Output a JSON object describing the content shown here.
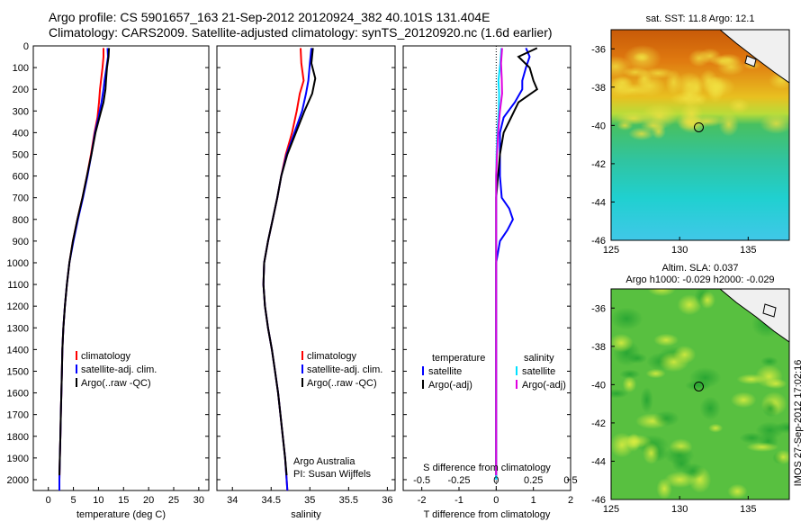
{
  "title_line1": "Argo profile: CS 5901657_163 21-Sep-2012 20120924_382 40.101S 131.404E",
  "title_line2": "Climatology: CARS2009. Satellite-adjusted climatology: synTS_20120920.nc (1.6d earlier)",
  "colors": {
    "red": "#ff0000",
    "blue": "#0000ff",
    "black": "#000000",
    "cyan": "#00e0ff",
    "magenta": "#e000e0"
  },
  "chart_data": [
    {
      "type": "line",
      "name": "temperature",
      "xlabel": "temperature (deg C)",
      "ylabel": "",
      "xlim": [
        -3,
        32
      ],
      "ylim": [
        2050,
        0
      ],
      "xticks": [
        "0",
        "5",
        "10",
        "15",
        "20",
        "25",
        "30"
      ],
      "yticks": [
        "0",
        "100",
        "200",
        "300",
        "400",
        "500",
        "600",
        "700",
        "800",
        "900",
        "1000",
        "1100",
        "1200",
        "1300",
        "1400",
        "1500",
        "1600",
        "1700",
        "1800",
        "1900",
        "2000"
      ],
      "legend": [
        "climatology",
        "satellite-adj. clim.",
        "Argo(..raw -QC)"
      ],
      "series": [
        {
          "name": "climatology",
          "color": "red",
          "points": [
            [
              11.0,
              10
            ],
            [
              11.0,
              50
            ],
            [
              10.8,
              100
            ],
            [
              10.5,
              160
            ],
            [
              10.3,
              200
            ],
            [
              10.1,
              260
            ],
            [
              9.8,
              330
            ],
            [
              9.2,
              400
            ],
            [
              8.5,
              500
            ],
            [
              7.7,
              600
            ],
            [
              6.8,
              700
            ],
            [
              5.8,
              800
            ],
            [
              4.9,
              900
            ],
            [
              4.2,
              1000
            ],
            [
              3.7,
              1100
            ],
            [
              3.3,
              1200
            ],
            [
              3.0,
              1300
            ],
            [
              2.8,
              1400
            ],
            [
              2.7,
              1500
            ],
            [
              2.6,
              1600
            ],
            [
              2.5,
              1700
            ],
            [
              2.4,
              1800
            ],
            [
              2.3,
              1900
            ],
            [
              2.2,
              2000
            ],
            [
              2.2,
              2050
            ]
          ]
        },
        {
          "name": "satellite-adj. clim.",
          "color": "blue",
          "points": [
            [
              11.8,
              10
            ],
            [
              11.9,
              50
            ],
            [
              11.6,
              100
            ],
            [
              11.2,
              160
            ],
            [
              11.0,
              200
            ],
            [
              10.6,
              260
            ],
            [
              10.0,
              330
            ],
            [
              9.3,
              400
            ],
            [
              8.6,
              500
            ],
            [
              7.8,
              600
            ],
            [
              6.9,
              700
            ],
            [
              5.9,
              800
            ],
            [
              5.0,
              900
            ],
            [
              4.2,
              1000
            ],
            [
              3.7,
              1100
            ],
            [
              3.3,
              1200
            ],
            [
              3.0,
              1300
            ],
            [
              2.8,
              1400
            ],
            [
              2.7,
              1500
            ],
            [
              2.6,
              1600
            ],
            [
              2.5,
              1700
            ],
            [
              2.4,
              1800
            ],
            [
              2.3,
              1900
            ],
            [
              2.2,
              2000
            ],
            [
              2.2,
              2050
            ]
          ]
        },
        {
          "name": "Argo(..raw -QC)",
          "color": "black",
          "points": [
            [
              12.1,
              10
            ],
            [
              12.0,
              50
            ],
            [
              11.7,
              100
            ],
            [
              11.5,
              160
            ],
            [
              11.4,
              200
            ],
            [
              11.0,
              260
            ],
            [
              10.2,
              330
            ],
            [
              9.4,
              400
            ],
            [
              8.6,
              500
            ],
            [
              7.7,
              600
            ],
            [
              6.8,
              700
            ],
            [
              5.8,
              800
            ],
            [
              4.9,
              900
            ],
            [
              4.2,
              1000
            ],
            [
              3.7,
              1100
            ],
            [
              3.3,
              1200
            ],
            [
              3.0,
              1300
            ],
            [
              2.8,
              1400
            ],
            [
              2.7,
              1500
            ],
            [
              2.6,
              1600
            ],
            [
              2.5,
              1700
            ],
            [
              2.4,
              1800
            ],
            [
              2.3,
              1900
            ],
            [
              2.2,
              1980
            ]
          ]
        }
      ]
    },
    {
      "type": "line",
      "name": "salinity",
      "xlabel": "salinity",
      "xlim": [
        33.8,
        36.1
      ],
      "ylim": [
        2050,
        0
      ],
      "xticks": [
        "34",
        "34.5",
        "35",
        "35.5",
        "36"
      ],
      "legend": [
        "climatology",
        "satellite-adj. clim.",
        "Argo(..raw -QC)"
      ],
      "annotation": [
        "Argo Australia",
        "PI: Susan Wijffels"
      ],
      "series": [
        {
          "name": "climatology",
          "color": "red",
          "points": [
            [
              34.88,
              10
            ],
            [
              34.89,
              80
            ],
            [
              34.92,
              160
            ],
            [
              34.87,
              220
            ],
            [
              34.83,
              300
            ],
            [
              34.77,
              400
            ],
            [
              34.69,
              500
            ],
            [
              34.63,
              600
            ],
            [
              34.58,
              700
            ],
            [
              34.52,
              800
            ],
            [
              34.46,
              900
            ],
            [
              34.41,
              1000
            ],
            [
              34.4,
              1100
            ],
            [
              34.42,
              1200
            ],
            [
              34.46,
              1300
            ],
            [
              34.51,
              1400
            ],
            [
              34.55,
              1500
            ],
            [
              34.59,
              1600
            ],
            [
              34.62,
              1700
            ],
            [
              34.65,
              1800
            ],
            [
              34.68,
              1900
            ],
            [
              34.7,
              2000
            ],
            [
              34.71,
              2050
            ]
          ]
        },
        {
          "name": "satellite-adj. clim.",
          "color": "blue",
          "points": [
            [
              35.02,
              10
            ],
            [
              35.0,
              80
            ],
            [
              34.98,
              160
            ],
            [
              34.95,
              220
            ],
            [
              34.9,
              300
            ],
            [
              34.8,
              400
            ],
            [
              34.7,
              500
            ],
            [
              34.63,
              600
            ],
            [
              34.58,
              700
            ],
            [
              34.52,
              800
            ],
            [
              34.46,
              900
            ],
            [
              34.41,
              1000
            ],
            [
              34.4,
              1100
            ],
            [
              34.42,
              1200
            ],
            [
              34.46,
              1300
            ],
            [
              34.51,
              1400
            ],
            [
              34.55,
              1500
            ],
            [
              34.59,
              1600
            ],
            [
              34.62,
              1700
            ],
            [
              34.65,
              1800
            ],
            [
              34.68,
              1900
            ],
            [
              34.7,
              2000
            ],
            [
              34.71,
              2050
            ]
          ]
        },
        {
          "name": "Argo(..raw -QC)",
          "color": "black",
          "points": [
            [
              35.04,
              10
            ],
            [
              35.02,
              80
            ],
            [
              35.07,
              150
            ],
            [
              35.03,
              220
            ],
            [
              34.93,
              300
            ],
            [
              34.82,
              400
            ],
            [
              34.71,
              500
            ],
            [
              34.63,
              600
            ],
            [
              34.58,
              700
            ],
            [
              34.52,
              800
            ],
            [
              34.46,
              900
            ],
            [
              34.41,
              1000
            ],
            [
              34.4,
              1100
            ],
            [
              34.42,
              1200
            ],
            [
              34.46,
              1300
            ],
            [
              34.51,
              1400
            ],
            [
              34.55,
              1500
            ],
            [
              34.59,
              1600
            ],
            [
              34.62,
              1700
            ],
            [
              34.65,
              1800
            ],
            [
              34.68,
              1900
            ],
            [
              34.7,
              1980
            ]
          ]
        }
      ]
    },
    {
      "type": "line",
      "name": "difference",
      "xlabel": "T difference from climatology",
      "xlabel_top": "S difference from climatology",
      "xlim": [
        -2.5,
        2.0
      ],
      "ylim": [
        2050,
        0
      ],
      "xticks": [
        "-2",
        "-1",
        "0",
        "1",
        "2"
      ],
      "xticks_top": [
        "-0.5",
        "-0.25",
        "0",
        "0.25",
        "0.5"
      ],
      "legend_headers": [
        "temperature",
        "salinity"
      ],
      "legend": [
        "satellite",
        "Argo(-adj)",
        "satellite",
        "Argo(-adj)"
      ],
      "series": [
        {
          "name": "T satellite",
          "color": "blue",
          "points": [
            [
              0.8,
              10
            ],
            [
              0.9,
              50
            ],
            [
              0.8,
              100
            ],
            [
              0.7,
              160
            ],
            [
              0.7,
              200
            ],
            [
              0.5,
              260
            ],
            [
              0.2,
              330
            ],
            [
              0.1,
              400
            ],
            [
              0.1,
              500
            ],
            [
              0.1,
              600
            ],
            [
              0.15,
              700
            ],
            [
              0.35,
              750
            ],
            [
              0.45,
              800
            ],
            [
              0.3,
              850
            ],
            [
              0.1,
              900
            ],
            [
              0.0,
              1000
            ],
            [
              0.0,
              1200
            ],
            [
              0.0,
              1500
            ],
            [
              0.0,
              2000
            ]
          ]
        },
        {
          "name": "T Argo(-adj)",
          "color": "black",
          "points": [
            [
              1.1,
              10
            ],
            [
              0.6,
              50
            ],
            [
              0.9,
              100
            ],
            [
              1.0,
              160
            ],
            [
              1.1,
              200
            ],
            [
              0.6,
              260
            ],
            [
              0.4,
              330
            ],
            [
              0.2,
              400
            ],
            [
              0.1,
              500
            ],
            [
              0.05,
              600
            ],
            [
              0.0,
              700
            ],
            [
              0.0,
              900
            ],
            [
              0.0,
              1100
            ],
            [
              0.0,
              1500
            ],
            [
              0.0,
              1980
            ]
          ]
        },
        {
          "name": "S satellite",
          "color": "cyan",
          "points": [
            [
              0.14,
              10
            ],
            [
              0.11,
              80
            ],
            [
              0.06,
              160
            ],
            [
              0.08,
              220
            ],
            [
              0.07,
              300
            ],
            [
              0.03,
              400
            ],
            [
              0.01,
              500
            ],
            [
              0.0,
              600
            ],
            [
              0.0,
              900
            ],
            [
              0.0,
              1200
            ],
            [
              0.0,
              2000
            ]
          ]
        },
        {
          "name": "S Argo(-adj)",
          "color": "magenta",
          "points": [
            [
              0.16,
              10
            ],
            [
              0.13,
              80
            ],
            [
              0.15,
              150
            ],
            [
              0.16,
              220
            ],
            [
              0.1,
              300
            ],
            [
              0.05,
              400
            ],
            [
              0.02,
              500
            ],
            [
              0.0,
              600
            ],
            [
              0.0,
              900
            ],
            [
              0.0,
              1200
            ],
            [
              0.0,
              1980
            ]
          ]
        }
      ]
    },
    {
      "type": "heatmap",
      "name": "sst-map",
      "title": "sat. SST: 11.8  Argo: 12.1",
      "xlim": [
        125,
        138
      ],
      "ylim": [
        -46,
        -35
      ],
      "xticks": [
        "125",
        "130",
        "135"
      ],
      "yticks": [
        "-36",
        "-38",
        "-40",
        "-42",
        "-44",
        "-46"
      ],
      "marker": [
        131.4,
        -40.1
      ]
    },
    {
      "type": "heatmap",
      "name": "sla-map",
      "title": "Altim. SLA: 0.037",
      "subtitle": "Argo h1000: -0.029 h2000: -0.029",
      "xlim": [
        125,
        138
      ],
      "ylim": [
        -46,
        -35
      ],
      "xticks": [
        "125",
        "130",
        "135"
      ],
      "yticks": [
        "-36",
        "-38",
        "-40",
        "-42",
        "-44",
        "-46"
      ],
      "marker": [
        131.4,
        -40.1
      ]
    }
  ],
  "sidebar_stamp": "IMOS 27-Sep-2012 17:02:16"
}
